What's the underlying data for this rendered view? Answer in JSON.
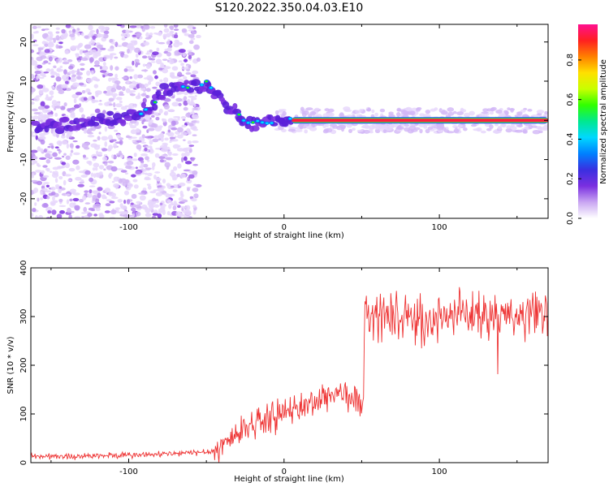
{
  "figure": {
    "title": "S120.2022.350.04.03.E10"
  },
  "chart_data": [
    {
      "type": "heatmap",
      "xlabel": "Height of straight line (km)",
      "ylabel": "Frequency (Hz)",
      "xlim": [
        -163,
        170
      ],
      "ylim": [
        -25,
        24.5
      ],
      "xticks": [
        -100,
        0,
        100
      ],
      "yticks": [
        -20,
        -10,
        0,
        10,
        20
      ],
      "ridge": {
        "x": [
          -100,
          -92,
          -85,
          -78,
          -70,
          -62,
          -55,
          -50,
          -45,
          -40,
          -35,
          -30,
          -25,
          -20,
          -15,
          -10,
          -5,
          0,
          5,
          170
        ],
        "y": [
          1,
          2,
          4,
          7,
          9,
          9,
          8,
          10,
          7,
          5,
          3,
          2,
          0,
          -1,
          0,
          0,
          -1,
          0,
          0,
          0
        ]
      },
      "colorbar": {
        "label": "Normalized spectral amplitude",
        "ticks": [
          0.0,
          0.2,
          0.4,
          0.6,
          0.8
        ],
        "colors": [
          "#ffffff",
          "#c9a6f2",
          "#7a2fe0",
          "#3a2fe0",
          "#0080ff",
          "#00d8ff",
          "#00e890",
          "#30ff00",
          "#c8ff00",
          "#ffe000",
          "#ff8000",
          "#ff2020",
          "#ff1090"
        ]
      }
    },
    {
      "type": "line",
      "xlabel": "Height of straight line (km)",
      "ylabel": "SNR (10 * v/v)",
      "xlim": [
        -163,
        170
      ],
      "ylim": [
        0,
        400
      ],
      "xticks": [
        -100,
        0,
        100
      ],
      "yticks": [
        0,
        100,
        200,
        300,
        400
      ],
      "color": "#ee3333",
      "x": [
        -163,
        -140,
        -120,
        -100,
        -80,
        -60,
        -45,
        -40,
        -35,
        -30,
        -25,
        -20,
        -15,
        -10,
        -5,
        0,
        5,
        10,
        15,
        20,
        25,
        30,
        35,
        40,
        45,
        50,
        51,
        52,
        55,
        60,
        70,
        80,
        90,
        100,
        110,
        120,
        130,
        140,
        150,
        160,
        170
      ],
      "y": [
        13,
        13,
        14,
        15,
        17,
        20,
        24,
        35,
        48,
        60,
        72,
        80,
        88,
        90,
        95,
        100,
        108,
        113,
        118,
        125,
        132,
        140,
        145,
        138,
        130,
        120,
        110,
        295,
        305,
        300,
        300,
        295,
        290,
        298,
        302,
        305,
        300,
        298,
        300,
        303,
        300
      ]
    }
  ]
}
